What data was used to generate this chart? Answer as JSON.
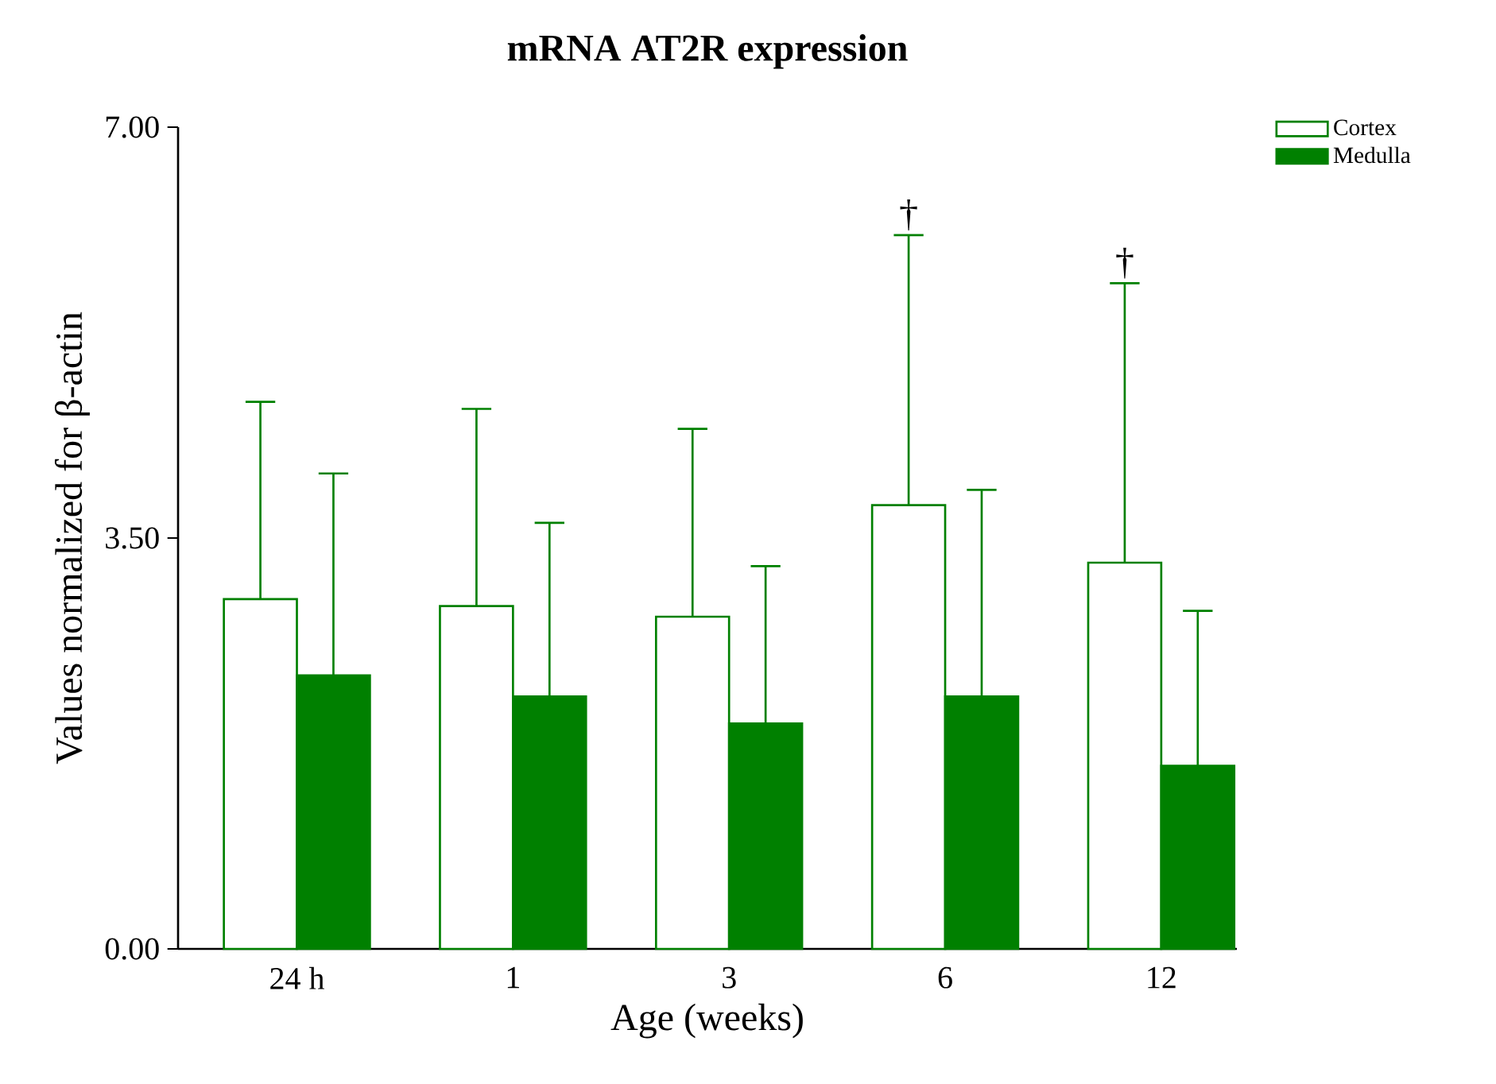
{
  "chart_data": {
    "type": "bar",
    "title": "mRNA AT2R expression",
    "xlabel": "Age (weeks)",
    "ylabel": "Values normalized for β-actin",
    "categories": [
      "24 h",
      "1",
      "3",
      "6",
      "12"
    ],
    "series": [
      {
        "name": "Cortex",
        "color": "#ffffff",
        "values": [
          2.98,
          2.92,
          2.83,
          3.78,
          3.29
        ],
        "errors": [
          [
            2.98,
            4.66
          ],
          [
            2.92,
            4.6
          ],
          [
            2.83,
            4.43
          ],
          [
            3.78,
            6.08
          ],
          [
            3.29,
            5.67
          ]
        ]
      },
      {
        "name": "Medulla",
        "color": "#008000",
        "values": [
          2.33,
          2.15,
          1.92,
          2.15,
          1.56
        ],
        "errors": [
          [
            2.33,
            4.05
          ],
          [
            2.15,
            3.63
          ],
          [
            1.92,
            3.26
          ],
          [
            2.15,
            3.91
          ],
          [
            1.56,
            2.88
          ]
        ]
      }
    ],
    "ylim": [
      0,
      7
    ],
    "yticks": [
      {
        "value": 0,
        "label": "0.00"
      },
      {
        "value": 3.5,
        "label": "3.50"
      },
      {
        "value": 7,
        "label": "7.00"
      }
    ],
    "annotations": [
      "†",
      "†"
    ],
    "legend": "top right",
    "grid": false
  }
}
